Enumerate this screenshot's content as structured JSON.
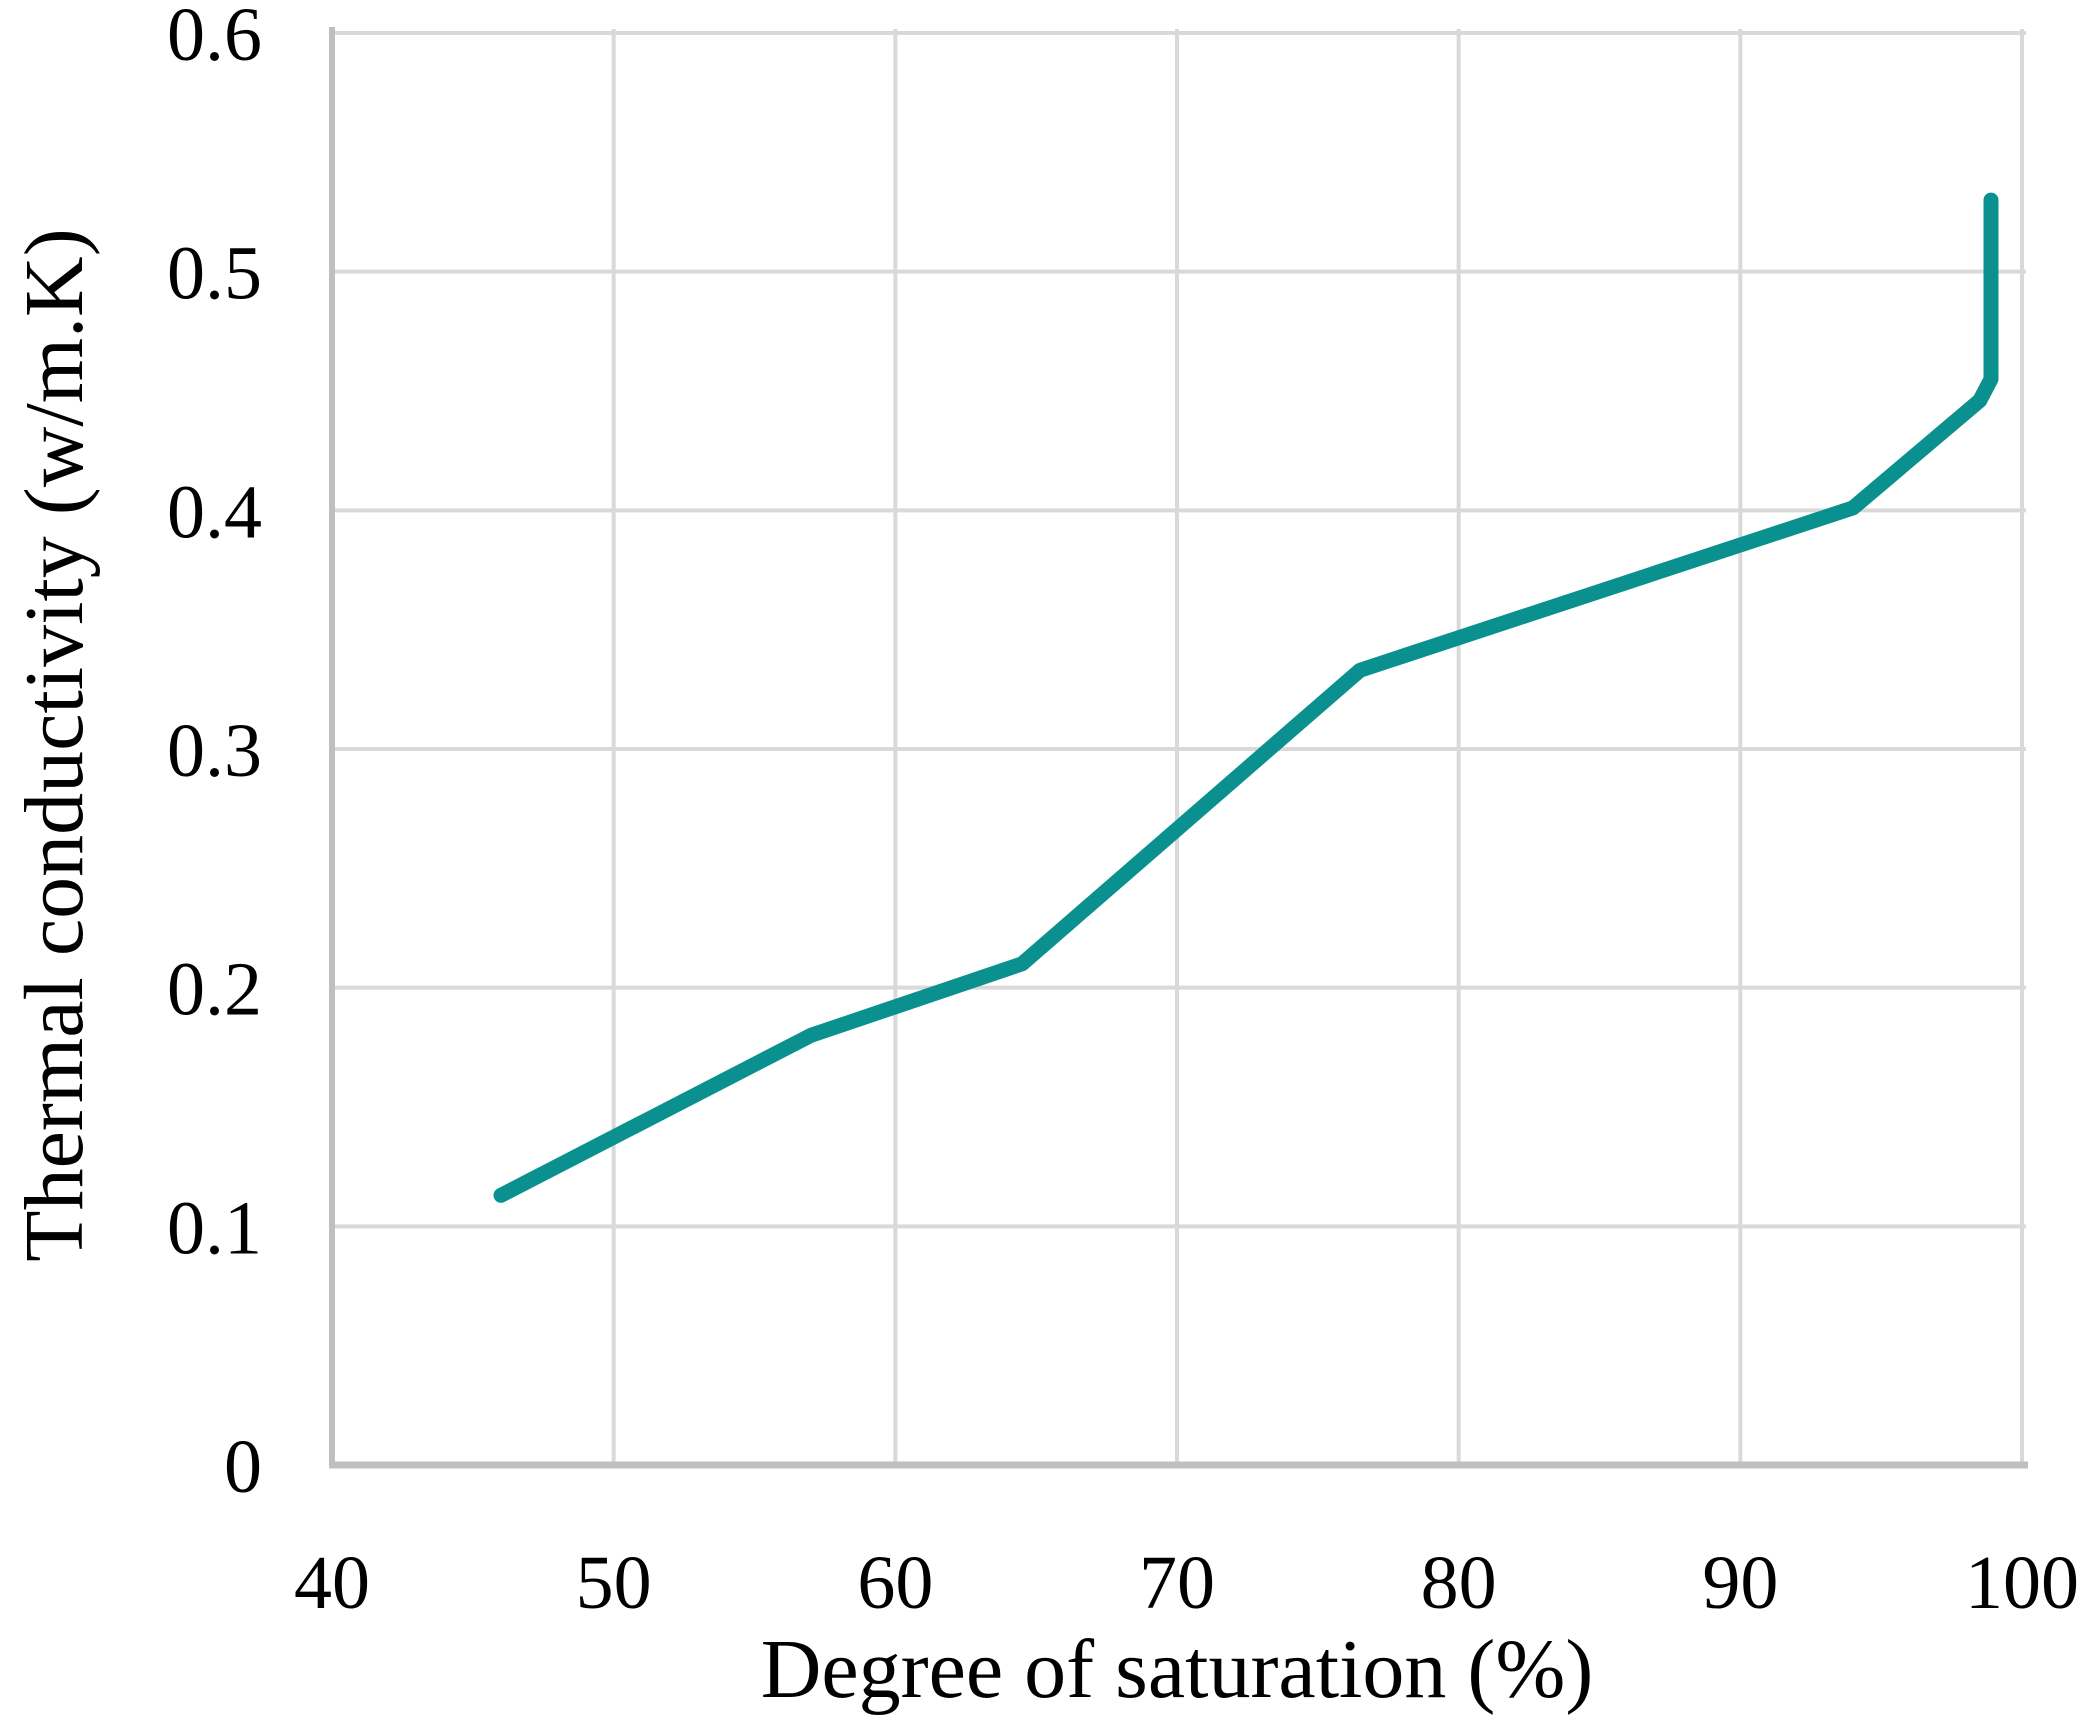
{
  "chart_data": {
    "type": "line",
    "title": "",
    "xlabel": "Degree of saturation (%)",
    "ylabel": "Thermal conductivity (w/m.K)",
    "xlim": [
      40,
      100
    ],
    "ylim": [
      0,
      0.6
    ],
    "x_ticks": [
      40,
      50,
      60,
      70,
      80,
      90,
      100
    ],
    "x_tick_labels": [
      "40",
      "50",
      "60",
      "70",
      "80",
      "90",
      "100"
    ],
    "y_ticks": [
      0,
      0.1,
      0.2,
      0.3,
      0.4,
      0.5,
      0.6
    ],
    "y_tick_labels": [
      "0",
      "0.1",
      "0.2",
      "0.3",
      "0.4",
      "0.5",
      "0.6"
    ],
    "grid": true,
    "legend_position": "none",
    "series": [
      {
        "name": "Thermal conductivity",
        "color": "#0a918f",
        "points": [
          [
            46,
            0.113
          ],
          [
            57,
            0.18
          ],
          [
            64.5,
            0.21
          ],
          [
            76.5,
            0.333
          ],
          [
            94,
            0.401
          ],
          [
            98.5,
            0.446
          ],
          [
            98.9,
            0.455
          ],
          [
            98.9,
            0.53
          ]
        ]
      }
    ],
    "colors": {
      "line": "#0a918f",
      "gridline": "#d9d9d9",
      "axis": "#bfbfbf",
      "text": "#000000",
      "background": "#ffffff"
    }
  }
}
